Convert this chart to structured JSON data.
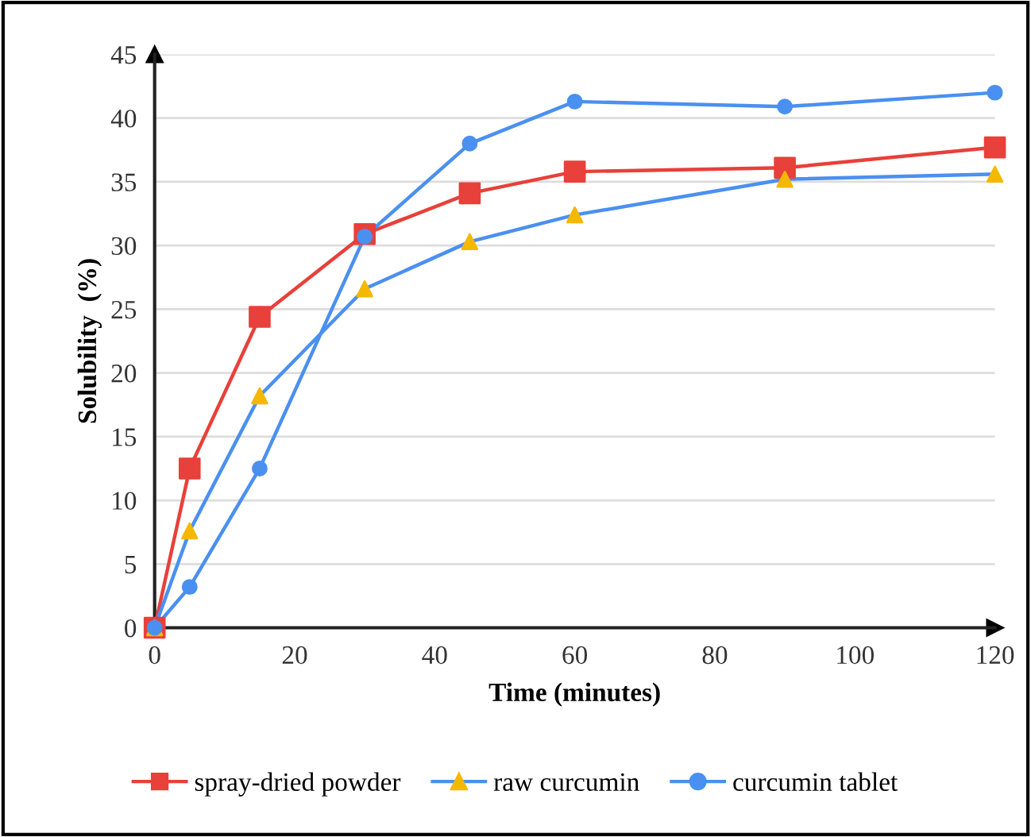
{
  "chart_data": {
    "type": "line",
    "xlabel": "Time (minutes)",
    "ylabel": "Solubility  (%)",
    "x": [
      0,
      5,
      15,
      30,
      45,
      60,
      90,
      120
    ],
    "series": [
      {
        "name": "spray-dried powder",
        "color": "#e8403a",
        "marker": "square",
        "values": [
          0,
          12.5,
          24.4,
          30.9,
          34.1,
          35.8,
          36.1,
          37.7
        ]
      },
      {
        "name": "raw curcumin",
        "color": "#4a90f0",
        "colors": [
          "#f5b800",
          "#f5b800",
          "#f5b800",
          "#f5b800",
          "#f5b800",
          "#f5b800",
          "#f5b800",
          "#f5b800"
        ],
        "marker": "triangle",
        "values": [
          0,
          7.6,
          18.2,
          26.6,
          30.3,
          32.4,
          35.2,
          35.6
        ]
      },
      {
        "name": "curcumin tablet",
        "color": "#4a90f0",
        "marker": "circle",
        "values": [
          0,
          3.2,
          12.5,
          30.7,
          38.0,
          41.3,
          40.9,
          42.0
        ]
      }
    ],
    "xlim": [
      0,
      120
    ],
    "xticks": [
      0,
      20,
      40,
      60,
      80,
      100,
      120
    ],
    "ylim": [
      0,
      45
    ],
    "yticks": [
      0,
      5,
      10,
      15,
      20,
      25,
      30,
      35,
      40,
      45
    ],
    "grid": "y",
    "legend": "bottom",
    "line_style": "solid"
  }
}
